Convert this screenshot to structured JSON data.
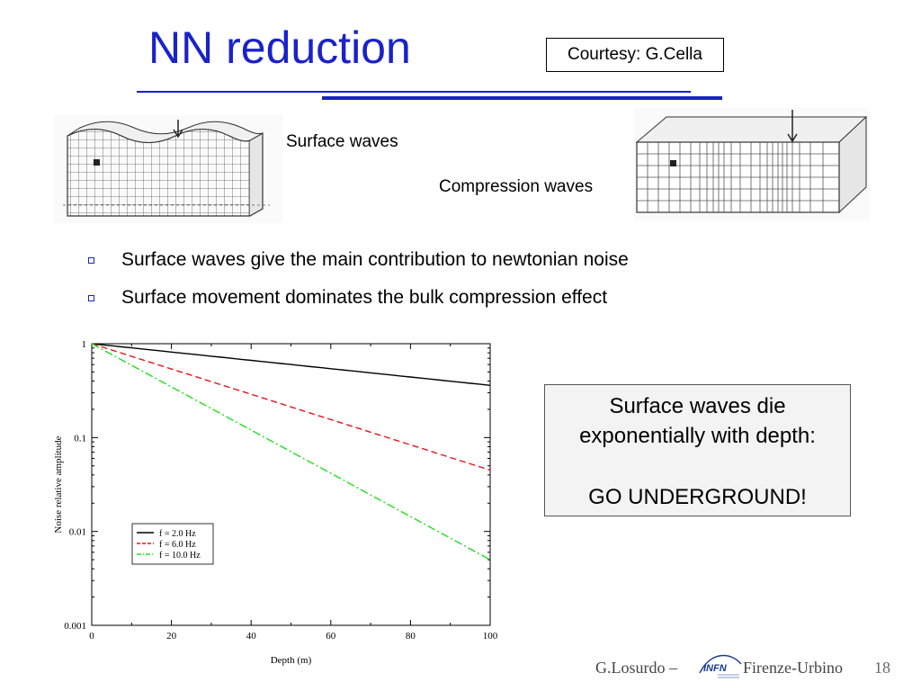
{
  "slide": {
    "title": "NN reduction",
    "courtesy": "Courtesy: G.Cella",
    "labels": {
      "surface": "Surface waves",
      "compression": "Compression waves"
    },
    "bullets": [
      "Surface waves give the main contribution to newtonian noise",
      "Surface movement dominates the bulk compression effect"
    ],
    "callout": {
      "line1": "Surface waves die",
      "line2": "exponentially with depth:",
      "line3": "GO UNDERGROUND!"
    },
    "footer": {
      "author": "G.Losurdo –",
      "logo_text": "INFN",
      "location": "Firenze-Urbino",
      "page": "18"
    }
  },
  "chart_data": {
    "type": "line",
    "xlabel": "Depth (m)",
    "ylabel": "Noise relative amplitude",
    "xlim": [
      0,
      100
    ],
    "ylim": [
      0.001,
      1
    ],
    "yscale": "log",
    "x_ticks": [
      "0",
      "20",
      "40",
      "60",
      "80",
      "100"
    ],
    "y_ticks": [
      "0.001",
      "0.01",
      "0.1",
      "1"
    ],
    "legend_position": "lower-left",
    "series": [
      {
        "name": "f = 2.0 Hz",
        "x": [
          0,
          100
        ],
        "y": [
          1,
          0.36
        ],
        "color": "#000000",
        "dash": "solid"
      },
      {
        "name": "f = 6.0 Hz",
        "x": [
          0,
          100
        ],
        "y": [
          1,
          0.045
        ],
        "color": "#e8141c",
        "dash": "dashed"
      },
      {
        "name": "f = 10.0 Hz",
        "x": [
          0,
          100
        ],
        "y": [
          1,
          0.005
        ],
        "color": "#22dd22",
        "dash": "dashdot"
      }
    ]
  }
}
